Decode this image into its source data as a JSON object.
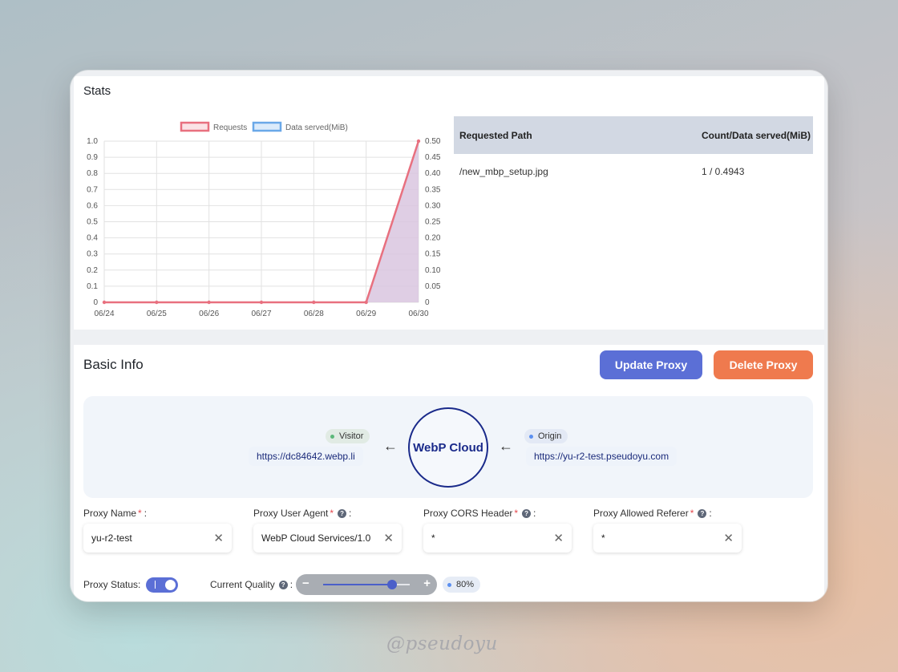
{
  "stats": {
    "title": "Stats",
    "table": {
      "headers": [
        "Requested Path",
        "Count/Data served(MiB)"
      ],
      "rows": [
        [
          "/new_mbp_setup.jpg",
          "1 / 0.4943"
        ]
      ]
    }
  },
  "chart_data": {
    "type": "line",
    "x": [
      "06/24",
      "06/25",
      "06/26",
      "06/27",
      "06/28",
      "06/29",
      "06/30"
    ],
    "series": [
      {
        "name": "Requests",
        "axis": "left",
        "values": [
          0,
          0,
          0,
          0,
          0,
          0,
          1
        ],
        "color": "#e8707f",
        "style": "line"
      },
      {
        "name": "Data served(MiB)",
        "axis": "right",
        "values": [
          0,
          0,
          0,
          0,
          0,
          0,
          0.4943
        ],
        "color": "#6aa8e8",
        "style": "area"
      }
    ],
    "y_left": {
      "ylim": [
        0,
        1.0
      ],
      "ticks": [
        "0",
        "0.1",
        "0.2",
        "0.3",
        "0.4",
        "0.5",
        "0.6",
        "0.7",
        "0.8",
        "0.9",
        "1.0"
      ]
    },
    "y_right": {
      "ylim": [
        0,
        0.5
      ],
      "ticks": [
        "0",
        "0.05",
        "0.10",
        "0.15",
        "0.20",
        "0.25",
        "0.30",
        "0.35",
        "0.40",
        "0.45",
        "0.50"
      ]
    },
    "grid": true,
    "legend": "top-center"
  },
  "basic_info": {
    "title": "Basic Info",
    "update_label": "Update Proxy",
    "delete_label": "Delete Proxy",
    "flow": {
      "visitor_label": "Visitor",
      "visitor_url": "https://dc84642.webp.li",
      "center_label": "WebP Cloud",
      "origin_label": "Origin",
      "origin_url": "https://yu-r2-test.pseudoyu.com",
      "arrow": "←"
    },
    "fields": {
      "name": {
        "label": "Proxy Name",
        "value": "yu-r2-test"
      },
      "agent": {
        "label": "Proxy User Agent",
        "value": "WebP Cloud Services/1.0"
      },
      "cors": {
        "label": "Proxy CORS Header",
        "value": "*"
      },
      "referer": {
        "label": "Proxy Allowed Referer",
        "value": "*"
      }
    },
    "required_mark": "*",
    "help_icon": "?",
    "colon": ":",
    "clear_icon": "✕",
    "status": {
      "label": "Proxy Status:",
      "enabled": true,
      "on_mark": "I"
    },
    "quality": {
      "label": "Current Quality",
      "value": 80,
      "value_text": "80%",
      "minus": "−",
      "plus": "+"
    }
  },
  "watermark": "@pseudoyu",
  "colors": {
    "accent": "#5b6fd6",
    "danger": "#ef7a4e",
    "requests_line": "#e8707f",
    "data_area": "#d9c6df",
    "table_header": "#d2d8e3"
  }
}
